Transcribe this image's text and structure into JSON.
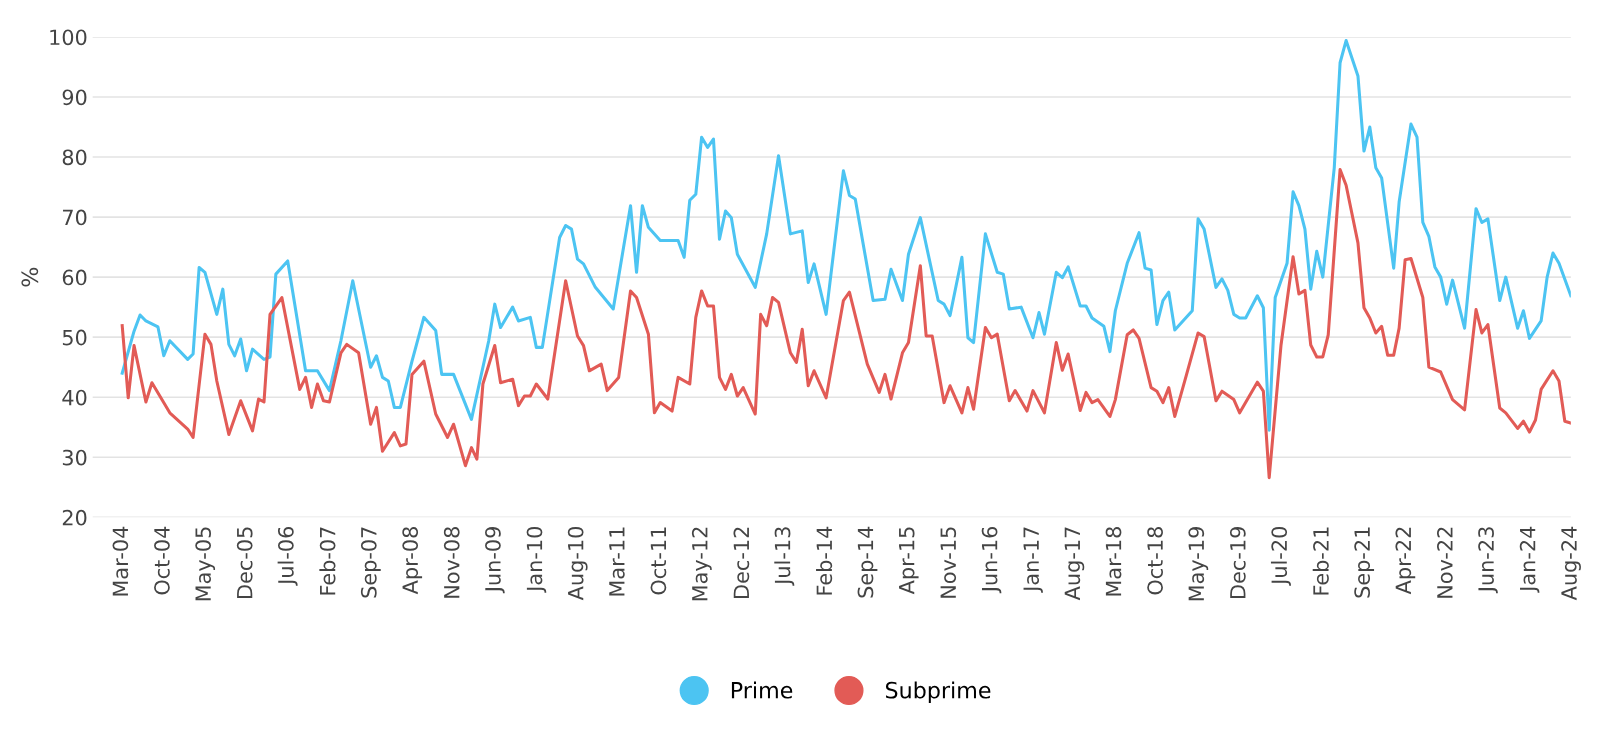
{
  "chart_data": {
    "type": "line",
    "ylabel": "%",
    "ylim": [
      20,
      100
    ],
    "yticks": [
      20,
      30,
      40,
      50,
      60,
      70,
      80,
      90,
      100
    ],
    "xlim": [
      "2003-10",
      "2024-08"
    ],
    "xticks": [
      {
        "value": "2004-03",
        "label": "Mar-04"
      },
      {
        "value": "2004-10",
        "label": "Oct-04"
      },
      {
        "value": "2005-05",
        "label": "May-05"
      },
      {
        "value": "2005-12",
        "label": "Dec-05"
      },
      {
        "value": "2006-07",
        "label": "Jul-06"
      },
      {
        "value": "2007-02",
        "label": "Feb-07"
      },
      {
        "value": "2007-09",
        "label": "Sep-07"
      },
      {
        "value": "2008-04",
        "label": "Apr-08"
      },
      {
        "value": "2008-11",
        "label": "Nov-08"
      },
      {
        "value": "2009-06",
        "label": "Jun-09"
      },
      {
        "value": "2010-01",
        "label": "Jan-10"
      },
      {
        "value": "2010-08",
        "label": "Aug-10"
      },
      {
        "value": "2011-03",
        "label": "Mar-11"
      },
      {
        "value": "2011-10",
        "label": "Oct-11"
      },
      {
        "value": "2012-05",
        "label": "May-12"
      },
      {
        "value": "2012-12",
        "label": "Dec-12"
      },
      {
        "value": "2013-07",
        "label": "Jul-13"
      },
      {
        "value": "2014-02",
        "label": "Feb-14"
      },
      {
        "value": "2014-09",
        "label": "Sep-14"
      },
      {
        "value": "2015-04",
        "label": "Apr-15"
      },
      {
        "value": "2015-11",
        "label": "Nov-15"
      },
      {
        "value": "2016-06",
        "label": "Jun-16"
      },
      {
        "value": "2017-01",
        "label": "Jan-17"
      },
      {
        "value": "2017-08",
        "label": "Aug-17"
      },
      {
        "value": "2018-03",
        "label": "Mar-18"
      },
      {
        "value": "2018-10",
        "label": "Oct-18"
      },
      {
        "value": "2019-05",
        "label": "May-19"
      },
      {
        "value": "2019-12",
        "label": "Dec-19"
      },
      {
        "value": "2020-07",
        "label": "Jul-20"
      },
      {
        "value": "2021-02",
        "label": "Feb-21"
      },
      {
        "value": "2021-09",
        "label": "Sep-21"
      },
      {
        "value": "2022-04",
        "label": "Apr-22"
      },
      {
        "value": "2022-11",
        "label": "Nov-22"
      },
      {
        "value": "2023-06",
        "label": "Jun-23"
      },
      {
        "value": "2024-01",
        "label": "Jan-24"
      },
      {
        "value": "2024-08",
        "label": "Aug-24"
      }
    ],
    "grid": "y",
    "legend": "bottom",
    "line_style": "solid",
    "series": [
      {
        "name": "Prime",
        "color": "#4cc4f2",
        "x": [
          "2004-03",
          "2004-05",
          "2004-06",
          "2004-07",
          "2004-09",
          "2004-10",
          "2004-11",
          "2005-02",
          "2005-03",
          "2005-04",
          "2005-05",
          "2005-07",
          "2005-08",
          "2005-09",
          "2005-10",
          "2005-11",
          "2005-12",
          "2006-01",
          "2006-03",
          "2006-04",
          "2006-05",
          "2006-07",
          "2006-10",
          "2006-12",
          "2007-02",
          "2007-04",
          "2007-06",
          "2007-09",
          "2007-10",
          "2007-11",
          "2007-12",
          "2008-01",
          "2008-02",
          "2008-04",
          "2008-06",
          "2008-08",
          "2008-09",
          "2008-11",
          "2009-02",
          "2009-05",
          "2009-06",
          "2009-07",
          "2009-09",
          "2009-10",
          "2009-12",
          "2010-01",
          "2010-02",
          "2010-05",
          "2010-06",
          "2010-07",
          "2010-08",
          "2010-09",
          "2010-11",
          "2011-02",
          "2011-05",
          "2011-06",
          "2011-07",
          "2011-08",
          "2011-10",
          "2012-01",
          "2012-02",
          "2012-03",
          "2012-04",
          "2012-05",
          "2012-06",
          "2012-07",
          "2012-08",
          "2012-09",
          "2012-10",
          "2012-11",
          "2013-02",
          "2013-04",
          "2013-06",
          "2013-08",
          "2013-10",
          "2013-11",
          "2013-12",
          "2014-02",
          "2014-05",
          "2014-06",
          "2014-07",
          "2014-10",
          "2014-12",
          "2015-01",
          "2015-03",
          "2015-04",
          "2015-06",
          "2015-09",
          "2015-10",
          "2015-11",
          "2016-01",
          "2016-02",
          "2016-03",
          "2016-05",
          "2016-07",
          "2016-08",
          "2016-09",
          "2016-11",
          "2017-01",
          "2017-02",
          "2017-03",
          "2017-05",
          "2017-06",
          "2017-07",
          "2017-09",
          "2017-10",
          "2017-11",
          "2018-01",
          "2018-02",
          "2018-03",
          "2018-05",
          "2018-07",
          "2018-08",
          "2018-09",
          "2018-10",
          "2018-11",
          "2018-12",
          "2019-01",
          "2019-04",
          "2019-05",
          "2019-06",
          "2019-08",
          "2019-09",
          "2019-10",
          "2019-11",
          "2019-12",
          "2020-01",
          "2020-03",
          "2020-04",
          "2020-05",
          "2020-06",
          "2020-08",
          "2020-09",
          "2020-10",
          "2020-11",
          "2020-12",
          "2021-01",
          "2021-02",
          "2021-04",
          "2021-05",
          "2021-06",
          "2021-08",
          "2021-09",
          "2021-10",
          "2021-11",
          "2021-12",
          "2022-02",
          "2022-03",
          "2022-05",
          "2022-06",
          "2022-07",
          "2022-08",
          "2022-09",
          "2022-10",
          "2022-11",
          "2022-12",
          "2023-02",
          "2023-04",
          "2023-05",
          "2023-06",
          "2023-08",
          "2023-09",
          "2023-11",
          "2023-12",
          "2024-01",
          "2024-03",
          "2024-04",
          "2024-05",
          "2024-06",
          "2024-08"
        ],
        "values": [
          44,
          51,
          53.7,
          52.7,
          51.7,
          46.9,
          49.4,
          46.3,
          47.2,
          61.6,
          60.8,
          53.8,
          58,
          48.8,
          46.9,
          49.7,
          44.4,
          48,
          46.3,
          46.7,
          60.5,
          62.7,
          44.4,
          44.4,
          41.1,
          49.4,
          59.4,
          45,
          46.9,
          43.3,
          42.7,
          38.3,
          38.3,
          46,
          53.3,
          51.1,
          43.8,
          43.8,
          36.3,
          49.4,
          55.5,
          51.6,
          55,
          52.7,
          53.3,
          48.3,
          48.3,
          66.6,
          68.6,
          68,
          63,
          62.2,
          58.3,
          54.7,
          71.9,
          60.8,
          71.9,
          68.3,
          66.1,
          66.1,
          63.3,
          72.8,
          73.8,
          83.3,
          81.6,
          83,
          66.3,
          71,
          69.9,
          63.8,
          58.3,
          67.2,
          80.2,
          67.2,
          67.7,
          59.1,
          62.2,
          53.8,
          77.7,
          73.6,
          73,
          56.1,
          56.3,
          61.3,
          56.1,
          63.8,
          69.9,
          56.1,
          55.5,
          53.6,
          63.3,
          49.9,
          49.1,
          67.2,
          60.8,
          60.5,
          54.7,
          55,
          49.9,
          54.1,
          50.5,
          60.8,
          59.9,
          61.7,
          55.2,
          55.2,
          53.2,
          51.8,
          47.6,
          54.4,
          62.3,
          67.4,
          61.5,
          61.2,
          52.1,
          56.1,
          57.5,
          51.2,
          54.4,
          69.7,
          68,
          58.3,
          59.7,
          57.8,
          53.8,
          53.2,
          53.2,
          56.9,
          54.9,
          34.5,
          56.6,
          62.3,
          74.2,
          71.9,
          68,
          58,
          64.3,
          60,
          78.2,
          95.7,
          99.4,
          93.5,
          81,
          85,
          78.2,
          76.5,
          61.5,
          72.5,
          85.5,
          83.3,
          69.1,
          66.8,
          61.7,
          60,
          55.5,
          59.5,
          51.5,
          71.4,
          69.1,
          69.7,
          56.1,
          60,
          51.5,
          54.4,
          49.8,
          52.7,
          60,
          64,
          62.3,
          56.9
        ]
      },
      {
        "name": "Subprime",
        "color": "#e25b56",
        "x": [
          "2004-03",
          "2004-04",
          "2004-05",
          "2004-07",
          "2004-08",
          "2004-11",
          "2005-02",
          "2005-03",
          "2005-05",
          "2005-06",
          "2005-07",
          "2005-09",
          "2005-11",
          "2006-01",
          "2006-02",
          "2006-03",
          "2006-04",
          "2006-06",
          "2006-09",
          "2006-10",
          "2006-11",
          "2006-12",
          "2007-01",
          "2007-02",
          "2007-04",
          "2007-05",
          "2007-07",
          "2007-09",
          "2007-10",
          "2007-11",
          "2008-01",
          "2008-02",
          "2008-03",
          "2008-04",
          "2008-06",
          "2008-08",
          "2008-10",
          "2008-11",
          "2009-01",
          "2009-02",
          "2009-03",
          "2009-04",
          "2009-06",
          "2009-07",
          "2009-09",
          "2009-10",
          "2009-11",
          "2009-12",
          "2010-01",
          "2010-03",
          "2010-06",
          "2010-08",
          "2010-09",
          "2010-10",
          "2010-12",
          "2011-01",
          "2011-03",
          "2011-05",
          "2011-06",
          "2011-08",
          "2011-09",
          "2011-10",
          "2011-12",
          "2012-01",
          "2012-03",
          "2012-04",
          "2012-05",
          "2012-06",
          "2012-07",
          "2012-08",
          "2012-09",
          "2012-10",
          "2012-11",
          "2012-12",
          "2013-02",
          "2013-03",
          "2013-04",
          "2013-05",
          "2013-06",
          "2013-08",
          "2013-09",
          "2013-10",
          "2013-11",
          "2013-12",
          "2014-02",
          "2014-05",
          "2014-06",
          "2014-09",
          "2014-11",
          "2014-12",
          "2015-01",
          "2015-03",
          "2015-04",
          "2015-06",
          "2015-07",
          "2015-08",
          "2015-10",
          "2015-11",
          "2016-01",
          "2016-02",
          "2016-03",
          "2016-05",
          "2016-06",
          "2016-07",
          "2016-09",
          "2016-10",
          "2016-12",
          "2017-01",
          "2017-03",
          "2017-05",
          "2017-06",
          "2017-07",
          "2017-09",
          "2017-10",
          "2017-11",
          "2017-12",
          "2018-02",
          "2018-03",
          "2018-05",
          "2018-06",
          "2018-07",
          "2018-09",
          "2018-10",
          "2018-11",
          "2018-12",
          "2019-01",
          "2019-03",
          "2019-05",
          "2019-06",
          "2019-08",
          "2019-09",
          "2019-11",
          "2019-12",
          "2020-03",
          "2020-04",
          "2020-05",
          "2020-07",
          "2020-09",
          "2020-10",
          "2020-11",
          "2020-12",
          "2021-01",
          "2021-02",
          "2021-03",
          "2021-05",
          "2021-06",
          "2021-08",
          "2021-09",
          "2021-10",
          "2021-11",
          "2021-12",
          "2022-01",
          "2022-02",
          "2022-03",
          "2022-04",
          "2022-05",
          "2022-07",
          "2022-08",
          "2022-10",
          "2022-12",
          "2023-02",
          "2023-04",
          "2023-05",
          "2023-06",
          "2023-08",
          "2023-09",
          "2023-11",
          "2023-12",
          "2024-01",
          "2024-02",
          "2024-03",
          "2024-05",
          "2024-06",
          "2024-07",
          "2024-08"
        ],
        "values": [
          51.9,
          39.9,
          48.6,
          39.2,
          42.4,
          37.4,
          34.7,
          33.3,
          50.5,
          48.8,
          42.7,
          33.8,
          39.4,
          34.4,
          39.7,
          39.2,
          53.8,
          56.6,
          41.3,
          43.3,
          38.3,
          42.2,
          39.4,
          39.2,
          47.4,
          48.8,
          47.4,
          35.5,
          38.3,
          31,
          34.1,
          31.9,
          32.2,
          43.8,
          46,
          37.2,
          33.3,
          35.5,
          28.6,
          31.6,
          29.7,
          42.2,
          48.6,
          42.4,
          43,
          38.6,
          40.2,
          40.2,
          42.2,
          39.7,
          59.4,
          50.2,
          48.6,
          44.4,
          45.5,
          41.1,
          43.3,
          57.7,
          56.6,
          50.5,
          37.4,
          39.1,
          37.7,
          43.3,
          42.2,
          53.3,
          57.7,
          55.2,
          55.2,
          43.3,
          41.3,
          43.8,
          40.2,
          41.6,
          37.2,
          53.8,
          51.9,
          56.6,
          55.8,
          47.4,
          45.8,
          51.3,
          41.9,
          44.4,
          39.9,
          56.1,
          57.5,
          45.5,
          40.8,
          43.8,
          39.7,
          47.4,
          49.1,
          61.9,
          50.2,
          50.2,
          39.1,
          41.9,
          37.4,
          41.6,
          38,
          51.6,
          49.9,
          50.5,
          39.4,
          41.1,
          37.7,
          41.1,
          37.4,
          49.1,
          44.5,
          47.2,
          37.8,
          40.8,
          39.1,
          39.6,
          36.8,
          39.6,
          50.4,
          51.2,
          49.8,
          41.6,
          41,
          39.1,
          41.6,
          36.8,
          43.6,
          50.7,
          50.1,
          39.4,
          41,
          39.6,
          37.4,
          42.5,
          41,
          26.6,
          48.7,
          63.4,
          57.2,
          57.8,
          48.7,
          46.7,
          46.7,
          50.4,
          77.9,
          75.3,
          65.7,
          54.9,
          53.2,
          50.7,
          51.8,
          47,
          47,
          51.5,
          62.9,
          63.1,
          56.6,
          45,
          44.2,
          39.6,
          37.9,
          54.6,
          50.7,
          52.1,
          38.2,
          37.4,
          34.8,
          36,
          34.2,
          36.2,
          41.3,
          44.4,
          42.7,
          36,
          35.7
        ]
      }
    ]
  }
}
